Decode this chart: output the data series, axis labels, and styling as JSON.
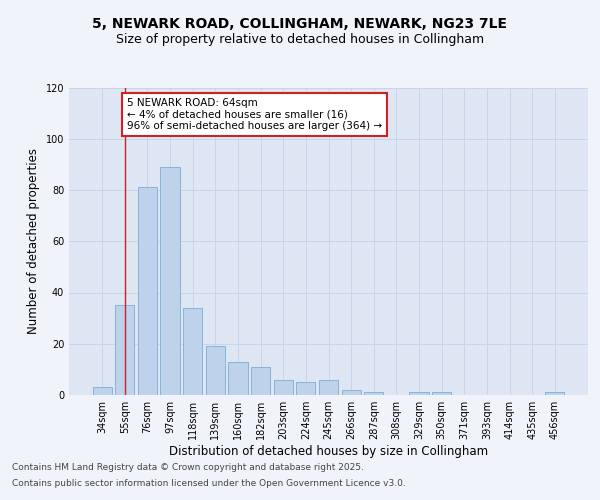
{
  "title_line1": "5, NEWARK ROAD, COLLINGHAM, NEWARK, NG23 7LE",
  "title_line2": "Size of property relative to detached houses in Collingham",
  "xlabel": "Distribution of detached houses by size in Collingham",
  "ylabel": "Number of detached properties",
  "categories": [
    "34sqm",
    "55sqm",
    "76sqm",
    "97sqm",
    "118sqm",
    "139sqm",
    "160sqm",
    "182sqm",
    "203sqm",
    "224sqm",
    "245sqm",
    "266sqm",
    "287sqm",
    "308sqm",
    "329sqm",
    "350sqm",
    "371sqm",
    "393sqm",
    "414sqm",
    "435sqm",
    "456sqm"
  ],
  "values": [
    3,
    35,
    81,
    89,
    34,
    19,
    13,
    11,
    6,
    5,
    6,
    2,
    1,
    0,
    1,
    1,
    0,
    0,
    0,
    0,
    1
  ],
  "bar_color": "#bed3eb",
  "bar_edge_color": "#7aadd4",
  "vline_x": 1.0,
  "vline_color": "#cc2222",
  "annotation_text": "5 NEWARK ROAD: 64sqm\n← 4% of detached houses are smaller (16)\n96% of semi-detached houses are larger (364) →",
  "annotation_box_color": "#cc2222",
  "ylim": [
    0,
    120
  ],
  "yticks": [
    0,
    20,
    40,
    60,
    80,
    100,
    120
  ],
  "grid_color": "#c8d4e8",
  "bg_color": "#dde6f2",
  "footer_line1": "Contains HM Land Registry data © Crown copyright and database right 2025.",
  "footer_line2": "Contains public sector information licensed under the Open Government Licence v3.0.",
  "title_fontsize": 10,
  "subtitle_fontsize": 9,
  "axis_label_fontsize": 8.5,
  "tick_fontsize": 7,
  "annotation_fontsize": 7.5,
  "footer_fontsize": 6.5
}
